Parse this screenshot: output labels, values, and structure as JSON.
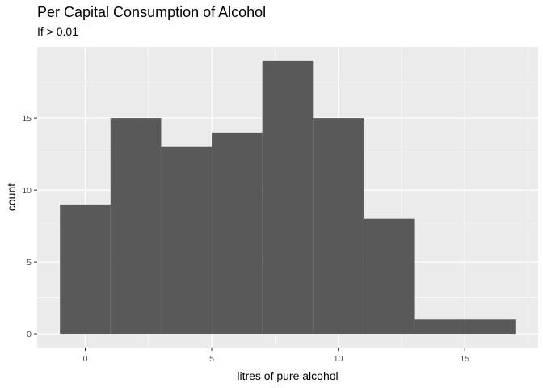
{
  "chart_data": {
    "type": "bar",
    "title": "Per Capital Consumption of Alcohol",
    "subtitle": "If > 0.01",
    "xlabel": "litres of pure alcohol",
    "ylabel": "count",
    "bins": [
      {
        "x0": -1,
        "x1": 1,
        "count": 9
      },
      {
        "x0": 1,
        "x1": 3,
        "count": 15
      },
      {
        "x0": 3,
        "x1": 5,
        "count": 13
      },
      {
        "x0": 5,
        "x1": 7,
        "count": 14
      },
      {
        "x0": 7,
        "x1": 9,
        "count": 19
      },
      {
        "x0": 9,
        "x1": 11,
        "count": 15
      },
      {
        "x0": 11,
        "x1": 13,
        "count": 8
      },
      {
        "x0": 13,
        "x1": 15,
        "count": 1
      },
      {
        "x0": 15,
        "x1": 17,
        "count": 1
      }
    ],
    "xlim": [
      -1.9,
      17.9
    ],
    "ylim": [
      -0.95,
      19.95
    ],
    "xticks": [
      0,
      5,
      10,
      15
    ],
    "yticks": [
      0,
      5,
      10,
      15
    ],
    "xtick_labels": [
      "0",
      "5",
      "10",
      "15"
    ],
    "ytick_labels": [
      "0",
      "5",
      "10",
      "15"
    ],
    "grid": true,
    "bar_color": "#595959",
    "panel_background": "#ebebeb",
    "grid_color": "#ffffff"
  }
}
